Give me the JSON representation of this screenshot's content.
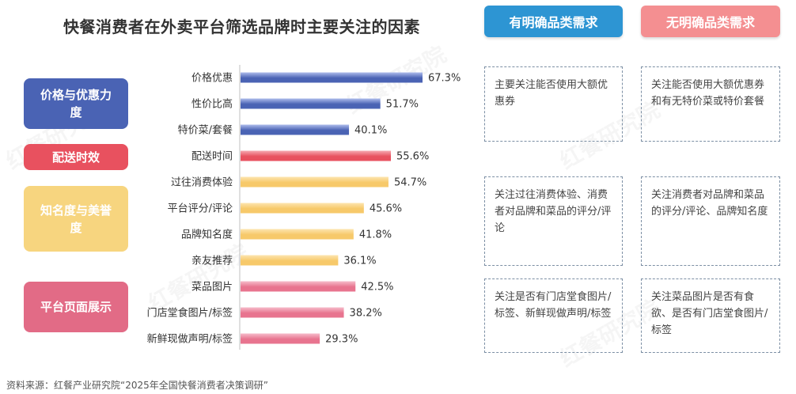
{
  "title": "快餐消费者在外卖平台筛选品牌时主要关注的因素",
  "headers": {
    "have": "有明确品类需求",
    "none": "无明确品类需求"
  },
  "watermark": "红餐研究院",
  "categories": [
    {
      "label": "价格与优惠力度",
      "color": "#4a63b4",
      "text_color": "#ffffff"
    },
    {
      "label": "配送时效",
      "color": "#e8515f",
      "text_color": "#ffffff"
    },
    {
      "label": "知名度与美誉度",
      "color": "#f7d57f",
      "text_color": "#ffffff"
    },
    {
      "label": "平台页面展示",
      "color": "#e26b86",
      "text_color": "#ffffff"
    }
  ],
  "chart_data": {
    "type": "bar",
    "orientation": "horizontal",
    "categories": [
      "价格优惠",
      "性价比高",
      "特价菜/套餐",
      "配送时间",
      "过往消费体验",
      "平台评分/评论",
      "品牌知名度",
      "亲友推荐",
      "菜品图片",
      "门店堂食图片/标签",
      "新鲜现做声明/标签"
    ],
    "values": [
      67.3,
      51.7,
      40.1,
      55.6,
      54.7,
      45.6,
      41.8,
      36.1,
      42.5,
      38.2,
      29.3
    ],
    "value_labels": [
      "67.3%",
      "51.7%",
      "40.1%",
      "55.6%",
      "54.7%",
      "45.6%",
      "41.8%",
      "36.1%",
      "42.5%",
      "38.2%",
      "29.3%"
    ],
    "bar_colors": [
      "#4a63b4",
      "#4a63b4",
      "#4a63b4",
      "#e8515f",
      "#f7c96a",
      "#f7c96a",
      "#f7c96a",
      "#f7c96a",
      "#e8748f",
      "#e8748f",
      "#e8748f"
    ],
    "bar_highlight": [
      "#aebcec",
      "#aebcec",
      "#aebcec",
      "#f6aab2",
      "#fde5b0",
      "#fde5b0",
      "#fde5b0",
      "#fde5b0",
      "#f6bccb",
      "#f6bccb",
      "#f6bccb"
    ],
    "xlim": [
      0,
      80
    ],
    "grid": false,
    "legend": "none"
  },
  "notes": [
    {
      "have": "主要关注能否使用大额优惠券",
      "none": "关注能否使用大额优惠券和有无特价菜或特价套餐"
    },
    {
      "have": "关注过往消费体验、消费者对品牌和菜品的评分/评论",
      "none": "关注消费者对品牌和菜品的评分/评论、品牌知名度"
    },
    {
      "have": "关注是否有门店堂食图片/标签、新鲜现做声明/标签",
      "none": "关注菜品图片是否有食欲、是否有门店堂食图片/标签"
    }
  ],
  "source": "资料来源：红餐产业研究院“2025年全国快餐消费者决策调研”"
}
